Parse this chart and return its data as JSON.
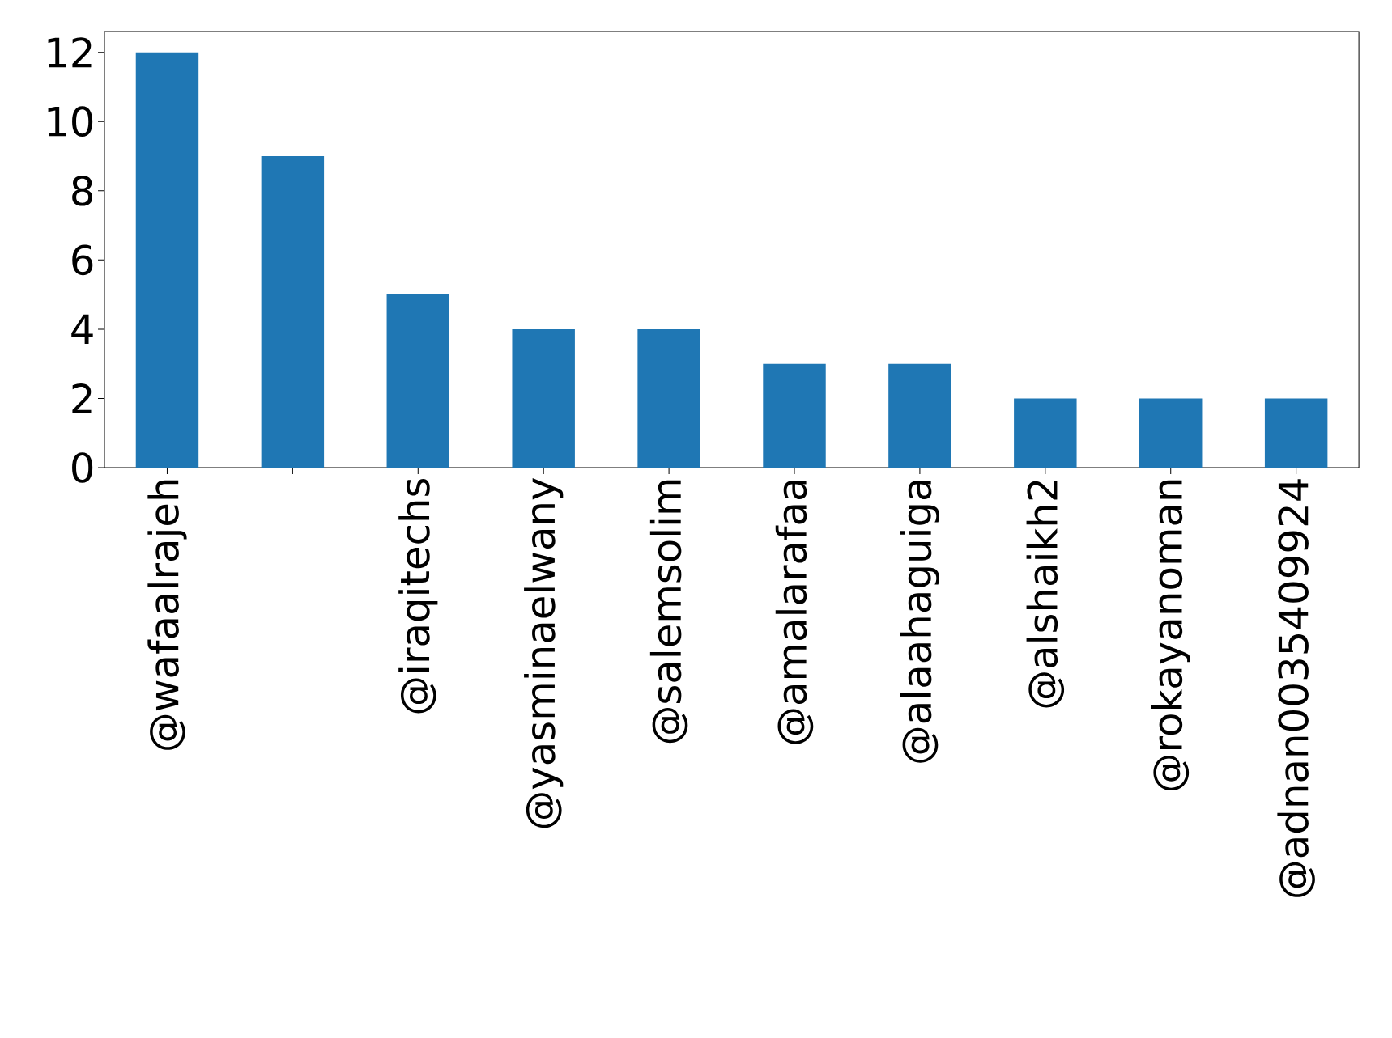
{
  "chart_data": {
    "type": "bar",
    "categories": [
      "@wafaalrajeh",
      null,
      "@iraqitechs",
      "@yasminaelwany",
      "@salemsolim",
      "@amalarafaa",
      "@alaahaguiga",
      "@alshaikh2",
      "@rokayanoman",
      "@adnan0035409924"
    ],
    "values": [
      12,
      9,
      5,
      4,
      4,
      3,
      3,
      2,
      2,
      2
    ],
    "color": "#1f77b4",
    "ylim": [
      0,
      12.6
    ],
    "yticks": [
      0,
      2,
      4,
      6,
      8,
      10,
      12
    ]
  }
}
